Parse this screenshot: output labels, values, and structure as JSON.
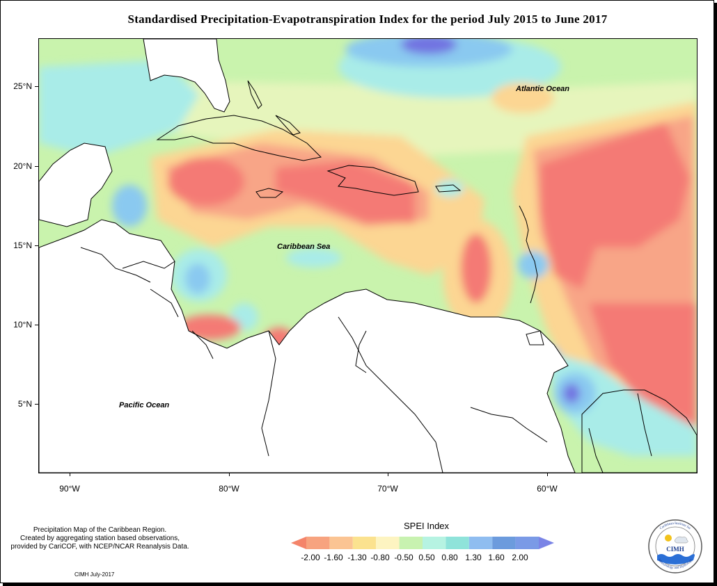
{
  "title": "Standardised Precipitation-Evapotranspiration Index for the period July 2015 to June 2017",
  "map_labels": {
    "atlantic": "Atlantic Ocean",
    "caribbean": "Caribbean Sea",
    "pacific": "Pacific Ocean"
  },
  "y_axis": [
    "25°N",
    "20°N",
    "15°N",
    "10°N",
    "5°N"
  ],
  "x_axis": [
    "90°W",
    "80°W",
    "70°W",
    "60°W"
  ],
  "notes": [
    "Precipitation Map of the Caribbean Region.",
    "Created by aggregating station based observations,",
    "provided by CariCOF, with NCEP/NCAR Reanalysis Data."
  ],
  "stamp": "CIMH July-2017",
  "legend": {
    "title": "SPEI Index",
    "labels": [
      "-2.00",
      "-1.60",
      "-1.30",
      "-0.80",
      "-0.50",
      "0.50",
      "0.80",
      "1.30",
      "1.60",
      "2.00"
    ],
    "colors": [
      "#f4846a",
      "#f7a37f",
      "#fbc493",
      "#fbe28f",
      "#fdf4c1",
      "#c8f2b0",
      "#b6f3e2",
      "#8fe3da",
      "#8fbdf0",
      "#6c9bdd",
      "#7a84e6"
    ]
  },
  "logo": {
    "text": "CIMH",
    "ring_top": "Caribbean Institute for",
    "ring_bottom": "Meteorology and Hydrology"
  },
  "colors": {
    "dry_extreme": "#f47a74",
    "dry_severe": "#f8a587",
    "dry_moderate": "#fcd693",
    "near_normal": "#e6f5bc",
    "wet_light": "#c9f3ad",
    "wet_moderate": "#a9ece8",
    "wet_severe": "#8ac9f0",
    "wet_extreme": "#7273e1",
    "land": "#ffffff"
  }
}
